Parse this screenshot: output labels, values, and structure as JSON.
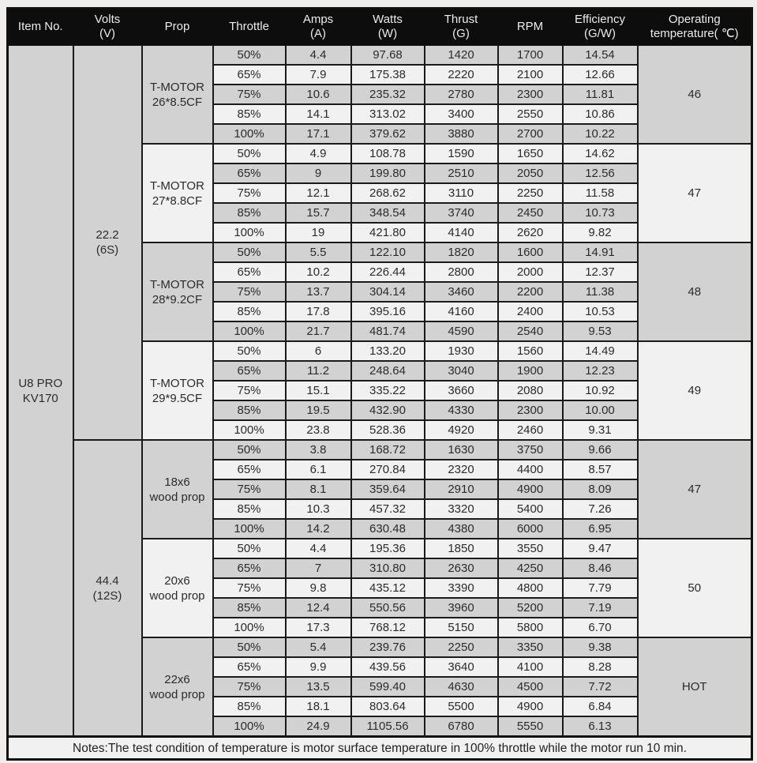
{
  "page": {
    "notes": "Notes:The test condition of temperature is motor surface temperature in 100% throttle while the motor run 10 min."
  },
  "colors": {
    "header_bg": "#0d0d0d",
    "header_text": "#ececec",
    "row_grey": "#d2d2d2",
    "row_white": "#f1f1f1",
    "border": "#1a1a1a",
    "page_bg": "#efeeec"
  },
  "table": {
    "headers": [
      {
        "l1": "Item No.",
        "l2": ""
      },
      {
        "l1": "Volts",
        "l2": "(V)"
      },
      {
        "l1": "Prop",
        "l2": ""
      },
      {
        "l1": "Throttle",
        "l2": ""
      },
      {
        "l1": "Amps",
        "l2": "(A)"
      },
      {
        "l1": "Watts",
        "l2": "(W)"
      },
      {
        "l1": "Thrust",
        "l2": "(G)"
      },
      {
        "l1": "RPM",
        "l2": ""
      },
      {
        "l1": "Efficiency",
        "l2": "(G/W)"
      },
      {
        "l1": "Operating",
        "l2": "temperature( ℃)"
      }
    ],
    "row_columns": [
      "throttle",
      "amps",
      "watts",
      "thrust",
      "rpm",
      "efficiency"
    ],
    "item": {
      "lines": [
        "U8 PRO",
        "KV170"
      ]
    },
    "volt_groups": [
      {
        "lines": [
          "22.2",
          "(6S)"
        ],
        "row_count": 20
      },
      {
        "lines": [
          "44.4",
          "(12S)"
        ],
        "row_count": 15
      }
    ],
    "sections": [
      {
        "prop_lines": [
          "T-MOTOR",
          "26*8.5CF"
        ],
        "temp": "46",
        "shade": "grey",
        "rows": [
          [
            "50%",
            "4.4",
            "97.68",
            "1420",
            "1700",
            "14.54"
          ],
          [
            "65%",
            "7.9",
            "175.38",
            "2220",
            "2100",
            "12.66"
          ],
          [
            "75%",
            "10.6",
            "235.32",
            "2780",
            "2300",
            "11.81"
          ],
          [
            "85%",
            "14.1",
            "313.02",
            "3400",
            "2550",
            "10.86"
          ],
          [
            "100%",
            "17.1",
            "379.62",
            "3880",
            "2700",
            "10.22"
          ]
        ]
      },
      {
        "prop_lines": [
          "T-MOTOR",
          "27*8.8CF"
        ],
        "temp": "47",
        "shade": "white",
        "rows": [
          [
            "50%",
            "4.9",
            "108.78",
            "1590",
            "1650",
            "14.62"
          ],
          [
            "65%",
            "9",
            "199.80",
            "2510",
            "2050",
            "12.56"
          ],
          [
            "75%",
            "12.1",
            "268.62",
            "3110",
            "2250",
            "11.58"
          ],
          [
            "85%",
            "15.7",
            "348.54",
            "3740",
            "2450",
            "10.73"
          ],
          [
            "100%",
            "19",
            "421.80",
            "4140",
            "2620",
            "9.82"
          ]
        ]
      },
      {
        "prop_lines": [
          "T-MOTOR",
          "28*9.2CF"
        ],
        "temp": "48",
        "shade": "grey",
        "rows": [
          [
            "50%",
            "5.5",
            "122.10",
            "1820",
            "1600",
            "14.91"
          ],
          [
            "65%",
            "10.2",
            "226.44",
            "2800",
            "2000",
            "12.37"
          ],
          [
            "75%",
            "13.7",
            "304.14",
            "3460",
            "2200",
            "11.38"
          ],
          [
            "85%",
            "17.8",
            "395.16",
            "4160",
            "2400",
            "10.53"
          ],
          [
            "100%",
            "21.7",
            "481.74",
            "4590",
            "2540",
            "9.53"
          ]
        ]
      },
      {
        "prop_lines": [
          "T-MOTOR",
          "29*9.5CF"
        ],
        "temp": "49",
        "shade": "white",
        "rows": [
          [
            "50%",
            "6",
            "133.20",
            "1930",
            "1560",
            "14.49"
          ],
          [
            "65%",
            "11.2",
            "248.64",
            "3040",
            "1900",
            "12.23"
          ],
          [
            "75%",
            "15.1",
            "335.22",
            "3660",
            "2080",
            "10.92"
          ],
          [
            "85%",
            "19.5",
            "432.90",
            "4330",
            "2300",
            "10.00"
          ],
          [
            "100%",
            "23.8",
            "528.36",
            "4920",
            "2460",
            "9.31"
          ]
        ]
      },
      {
        "prop_lines": [
          "18x6",
          "wood prop"
        ],
        "temp": "47",
        "shade": "grey",
        "rows": [
          [
            "50%",
            "3.8",
            "168.72",
            "1630",
            "3750",
            "9.66"
          ],
          [
            "65%",
            "6.1",
            "270.84",
            "2320",
            "4400",
            "8.57"
          ],
          [
            "75%",
            "8.1",
            "359.64",
            "2910",
            "4900",
            "8.09"
          ],
          [
            "85%",
            "10.3",
            "457.32",
            "3320",
            "5400",
            "7.26"
          ],
          [
            "100%",
            "14.2",
            "630.48",
            "4380",
            "6000",
            "6.95"
          ]
        ]
      },
      {
        "prop_lines": [
          "20x6",
          "wood prop"
        ],
        "temp": "50",
        "shade": "white",
        "rows": [
          [
            "50%",
            "4.4",
            "195.36",
            "1850",
            "3550",
            "9.47"
          ],
          [
            "65%",
            "7",
            "310.80",
            "2630",
            "4250",
            "8.46"
          ],
          [
            "75%",
            "9.8",
            "435.12",
            "3390",
            "4800",
            "7.79"
          ],
          [
            "85%",
            "12.4",
            "550.56",
            "3960",
            "5200",
            "7.19"
          ],
          [
            "100%",
            "17.3",
            "768.12",
            "5150",
            "5800",
            "6.70"
          ]
        ]
      },
      {
        "prop_lines": [
          "22x6",
          "wood prop"
        ],
        "temp": "HOT",
        "shade": "grey",
        "rows": [
          [
            "50%",
            "5.4",
            "239.76",
            "2250",
            "3350",
            "9.38"
          ],
          [
            "65%",
            "9.9",
            "439.56",
            "3640",
            "4100",
            "8.28"
          ],
          [
            "75%",
            "13.5",
            "599.40",
            "4630",
            "4500",
            "7.72"
          ],
          [
            "85%",
            "18.1",
            "803.64",
            "5500",
            "4900",
            "6.84"
          ],
          [
            "100%",
            "24.9",
            "1105.56",
            "6780",
            "5550",
            "6.13"
          ]
        ]
      }
    ]
  }
}
